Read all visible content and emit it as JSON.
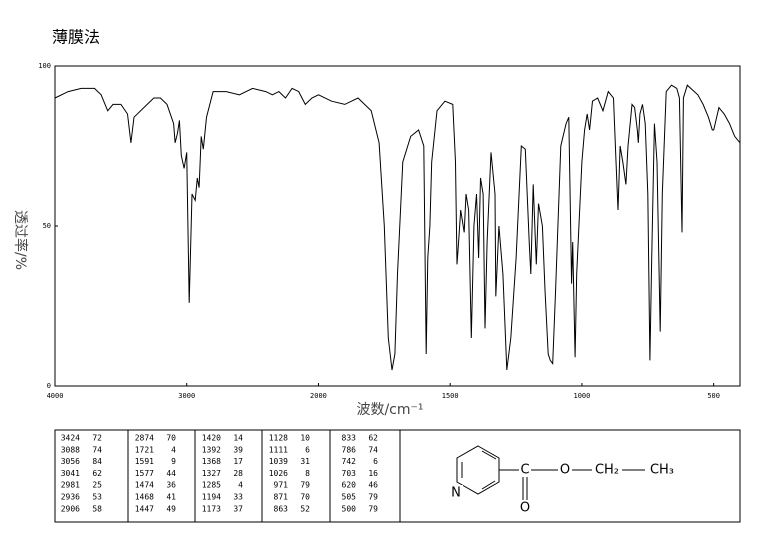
{
  "chart_data": {
    "type": "line",
    "title": "薄膜法",
    "xlabel": "波数/cm⁻¹",
    "ylabel": "透过率/%",
    "xlim": [
      4000,
      400
    ],
    "ylim": [
      0,
      100
    ],
    "xticks": [
      4000,
      3000,
      2000,
      1500,
      1000,
      500
    ],
    "yticks": [
      0,
      50,
      100
    ],
    "color": "#000000",
    "x": [
      4000,
      3900,
      3800,
      3700,
      3650,
      3600,
      3560,
      3500,
      3450,
      3424,
      3400,
      3300,
      3250,
      3200,
      3150,
      3100,
      3088,
      3070,
      3056,
      3041,
      3020,
      3000,
      2981,
      2960,
      2936,
      2920,
      2906,
      2890,
      2874,
      2850,
      2800,
      2700,
      2600,
      2500,
      2400,
      2350,
      2300,
      2250,
      2200,
      2150,
      2100,
      2050,
      2000,
      1950,
      1900,
      1850,
      1800,
      1770,
      1750,
      1735,
      1721,
      1710,
      1700,
      1680,
      1650,
      1620,
      1600,
      1591,
      1585,
      1577,
      1570,
      1550,
      1520,
      1490,
      1480,
      1474,
      1468,
      1460,
      1447,
      1440,
      1430,
      1420,
      1410,
      1400,
      1392,
      1385,
      1375,
      1368,
      1360,
      1345,
      1330,
      1327,
      1315,
      1300,
      1285,
      1270,
      1250,
      1230,
      1215,
      1200,
      1194,
      1185,
      1173,
      1165,
      1150,
      1140,
      1128,
      1120,
      1111,
      1100,
      1080,
      1060,
      1050,
      1039,
      1035,
      1026,
      1020,
      1000,
      990,
      980,
      971,
      960,
      940,
      920,
      900,
      880,
      871,
      863,
      855,
      845,
      833,
      825,
      810,
      800,
      790,
      786,
      780,
      770,
      760,
      750,
      742,
      735,
      725,
      715,
      703,
      695,
      680,
      660,
      640,
      630,
      620,
      615,
      600,
      560,
      540,
      520,
      505,
      500,
      480,
      460,
      440,
      420,
      400
    ],
    "values": [
      90,
      92,
      93,
      93,
      91,
      86,
      88,
      88,
      85,
      76,
      84,
      88,
      90,
      90,
      88,
      82,
      76,
      79,
      83,
      72,
      68,
      73,
      26,
      60,
      58,
      65,
      62,
      78,
      74,
      84,
      92,
      92,
      91,
      93,
      92,
      91,
      92,
      90,
      93,
      92,
      88,
      90,
      91,
      89,
      88,
      90,
      86,
      76,
      50,
      15,
      5,
      10,
      35,
      70,
      78,
      80,
      75,
      10,
      40,
      50,
      70,
      86,
      89,
      88,
      70,
      38,
      45,
      55,
      48,
      60,
      55,
      15,
      50,
      60,
      40,
      65,
      60,
      18,
      45,
      73,
      60,
      28,
      50,
      35,
      5,
      15,
      40,
      75,
      74,
      45,
      35,
      63,
      38,
      57,
      50,
      30,
      10,
      8,
      7,
      30,
      75,
      82,
      84,
      32,
      45,
      9,
      35,
      70,
      80,
      85,
      80,
      89,
      90,
      86,
      92,
      90,
      71,
      55,
      75,
      70,
      63,
      75,
      88,
      87,
      80,
      76,
      85,
      88,
      82,
      60,
      8,
      40,
      82,
      70,
      17,
      60,
      92,
      94,
      93,
      90,
      48,
      90,
      94,
      91,
      88,
      84,
      80,
      80,
      87,
      85,
      82,
      78,
      76
    ]
  },
  "peak_table": [
    [
      [
        3424,
        72
      ],
      [
        3088,
        74
      ],
      [
        3056,
        84
      ],
      [
        3041,
        62
      ],
      [
        2981,
        25
      ],
      [
        2936,
        53
      ],
      [
        2906,
        58
      ]
    ],
    [
      [
        2874,
        70
      ],
      [
        1721,
        4
      ],
      [
        1591,
        9
      ],
      [
        1577,
        44
      ],
      [
        1474,
        36
      ],
      [
        1468,
        41
      ],
      [
        1447,
        49
      ]
    ],
    [
      [
        1420,
        14
      ],
      [
        1392,
        39
      ],
      [
        1368,
        17
      ],
      [
        1327,
        28
      ],
      [
        1285,
        4
      ],
      [
        1194,
        33
      ],
      [
        1173,
        37
      ]
    ],
    [
      [
        1128,
        10
      ],
      [
        1111,
        6
      ],
      [
        1039,
        31
      ],
      [
        1026,
        8
      ],
      [
        971,
        79
      ],
      [
        871,
        70
      ],
      [
        863,
        52
      ]
    ],
    [
      [
        833,
        62
      ],
      [
        786,
        74
      ],
      [
        742,
        6
      ],
      [
        703,
        16
      ],
      [
        620,
        46
      ],
      [
        505,
        79
      ],
      [
        500,
        79
      ]
    ]
  ],
  "structure": {
    "atoms": [
      "N",
      "C",
      "O",
      "O",
      "CH₂",
      "CH₃"
    ]
  }
}
